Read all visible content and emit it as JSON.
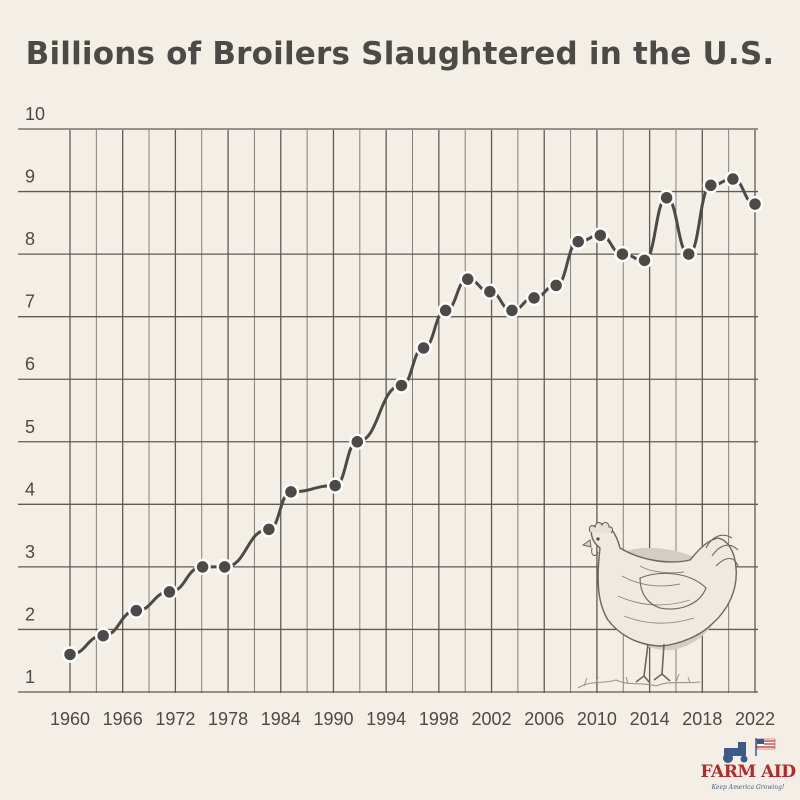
{
  "chart_data": {
    "type": "line",
    "title": "Billions of Broilers Slaughtered in the U.S.",
    "xlabel": "",
    "ylabel": "",
    "xlim": [
      1960,
      2022
    ],
    "ylim": [
      1,
      10
    ],
    "x_ticks": [
      "1960",
      "1966",
      "1972",
      "1978",
      "1984",
      "1990",
      "1994",
      "1998",
      "2002",
      "2006",
      "2010",
      "2014",
      "2018",
      "2022"
    ],
    "y_ticks": [
      "1",
      "2",
      "3",
      "4",
      "5",
      "6",
      "7",
      "8",
      "9",
      "10"
    ],
    "grid": true,
    "series": [
      {
        "color": "#4c4a46",
        "points": [
          {
            "x": 1960,
            "y": 1.6
          },
          {
            "x": 1963,
            "y": 1.9
          },
          {
            "x": 1966,
            "y": 2.3
          },
          {
            "x": 1969,
            "y": 2.6
          },
          {
            "x": 1972,
            "y": 3.0
          },
          {
            "x": 1974,
            "y": 3.0
          },
          {
            "x": 1978,
            "y": 3.6
          },
          {
            "x": 1980,
            "y": 4.2
          },
          {
            "x": 1984,
            "y": 4.3
          },
          {
            "x": 1986,
            "y": 5.0
          },
          {
            "x": 1990,
            "y": 5.9
          },
          {
            "x": 1992,
            "y": 6.5
          },
          {
            "x": 1994,
            "y": 7.1
          },
          {
            "x": 1996,
            "y": 7.6
          },
          {
            "x": 1998,
            "y": 7.4
          },
          {
            "x": 2000,
            "y": 7.1
          },
          {
            "x": 2002,
            "y": 7.3
          },
          {
            "x": 2004,
            "y": 7.5
          },
          {
            "x": 2006,
            "y": 8.2
          },
          {
            "x": 2008,
            "y": 8.3
          },
          {
            "x": 2010,
            "y": 8.0
          },
          {
            "x": 2012,
            "y": 7.9
          },
          {
            "x": 2014,
            "y": 8.9
          },
          {
            "x": 2016,
            "y": 8.0
          },
          {
            "x": 2018,
            "y": 9.1
          },
          {
            "x": 2020,
            "y": 9.2
          },
          {
            "x": 2022,
            "y": 8.8
          }
        ]
      }
    ]
  },
  "colors": {
    "background": "#f4efe6",
    "grid": "#5e5b55",
    "line": "#4c4a46",
    "marker_fill": "#4c4a46",
    "marker_stroke": "#ffffff",
    "text": "#4c4a46"
  },
  "illustration": {
    "icon": "chicken-illustration"
  },
  "brand": {
    "name": "FARM AID",
    "tagline": "Keep America Growing!",
    "icon": "tractor-flag-icon"
  }
}
